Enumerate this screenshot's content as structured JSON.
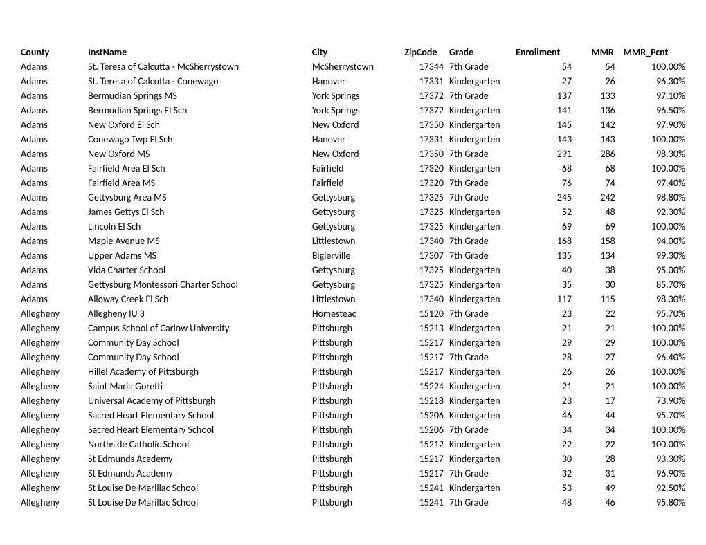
{
  "table": {
    "columns": [
      "County",
      "InstName",
      "City",
      "ZipCode",
      "Grade",
      "Enrollment",
      "MMR",
      "MMR_Pcnt"
    ],
    "rows": [
      [
        "Adams",
        "St. Teresa of Calcutta - McSherrystown",
        "McSherrystown",
        "17344",
        "7th Grade",
        "54",
        "54",
        "100.00%"
      ],
      [
        "Adams",
        "St. Teresa of Calcutta - Conewago",
        "Hanover",
        "17331",
        "Kindergarten",
        "27",
        "26",
        "96.30%"
      ],
      [
        "Adams",
        "Bermudian Springs MS",
        "York Springs",
        "17372",
        "7th Grade",
        "137",
        "133",
        "97.10%"
      ],
      [
        "Adams",
        "Bermudian Springs El Sch",
        "York Springs",
        "17372",
        "Kindergarten",
        "141",
        "136",
        "96.50%"
      ],
      [
        "Adams",
        "New Oxford El Sch",
        "New Oxford",
        "17350",
        "Kindergarten",
        "145",
        "142",
        "97.90%"
      ],
      [
        "Adams",
        "Conewago Twp El Sch",
        "Hanover",
        "17331",
        "Kindergarten",
        "143",
        "143",
        "100.00%"
      ],
      [
        "Adams",
        "New Oxford MS",
        "New Oxford",
        "17350",
        "7th Grade",
        "291",
        "286",
        "98.30%"
      ],
      [
        "Adams",
        "Fairfield Area El Sch",
        "Fairfield",
        "17320",
        "Kindergarten",
        "68",
        "68",
        "100.00%"
      ],
      [
        "Adams",
        "Fairfield Area MS",
        "Fairfield",
        "17320",
        "7th Grade",
        "76",
        "74",
        "97.40%"
      ],
      [
        "Adams",
        "Gettysburg Area MS",
        "Gettysburg",
        "17325",
        "7th Grade",
        "245",
        "242",
        "98.80%"
      ],
      [
        "Adams",
        "James Gettys El Sch",
        "Gettysburg",
        "17325",
        "Kindergarten",
        "52",
        "48",
        "92.30%"
      ],
      [
        "Adams",
        "Lincoln El Sch",
        "Gettysburg",
        "17325",
        "Kindergarten",
        "69",
        "69",
        "100.00%"
      ],
      [
        "Adams",
        "Maple Avenue MS",
        "Littlestown",
        "17340",
        "7th Grade",
        "168",
        "158",
        "94.00%"
      ],
      [
        "Adams",
        "Upper Adams MS",
        "Biglerville",
        "17307",
        "7th Grade",
        "135",
        "134",
        "99.30%"
      ],
      [
        "Adams",
        "Vida Charter School",
        "Gettysburg",
        "17325",
        "Kindergarten",
        "40",
        "38",
        "95.00%"
      ],
      [
        "Adams",
        "Gettysburg Montessori Charter School",
        "Gettysburg",
        "17325",
        "Kindergarten",
        "35",
        "30",
        "85.70%"
      ],
      [
        "Adams",
        "Alloway Creek El Sch",
        "Littlestown",
        "17340",
        "Kindergarten",
        "117",
        "115",
        "98.30%"
      ],
      [
        "Allegheny",
        "Allegheny IU 3",
        "Homestead",
        "15120",
        "7th Grade",
        "23",
        "22",
        "95.70%"
      ],
      [
        "Allegheny",
        "Campus School of Carlow University",
        "Pittsburgh",
        "15213",
        "Kindergarten",
        "21",
        "21",
        "100.00%"
      ],
      [
        "Allegheny",
        "Community Day School",
        "Pittsburgh",
        "15217",
        "Kindergarten",
        "29",
        "29",
        "100.00%"
      ],
      [
        "Allegheny",
        "Community Day School",
        "Pittsburgh",
        "15217",
        "7th Grade",
        "28",
        "27",
        "96.40%"
      ],
      [
        "Allegheny",
        "Hillel Academy of Pittsburgh",
        "Pittsburgh",
        "15217",
        "Kindergarten",
        "26",
        "26",
        "100.00%"
      ],
      [
        "Allegheny",
        "Saint Maria Goretti",
        "Pittsburgh",
        "15224",
        "Kindergarten",
        "21",
        "21",
        "100.00%"
      ],
      [
        "Allegheny",
        "Universal Academy of Pittsburgh",
        "Pittsburgh",
        "15218",
        "Kindergarten",
        "23",
        "17",
        "73.90%"
      ],
      [
        "Allegheny",
        "Sacred Heart Elementary School",
        "Pittsburgh",
        "15206",
        "Kindergarten",
        "46",
        "44",
        "95.70%"
      ],
      [
        "Allegheny",
        "Sacred Heart Elementary School",
        "Pittsburgh",
        "15206",
        "7th Grade",
        "34",
        "34",
        "100.00%"
      ],
      [
        "Allegheny",
        "Northside Catholic School",
        "Pittsburgh",
        "15212",
        "Kindergarten",
        "22",
        "22",
        "100.00%"
      ],
      [
        "Allegheny",
        "St Edmunds Academy",
        "Pittsburgh",
        "15217",
        "Kindergarten",
        "30",
        "28",
        "93.30%"
      ],
      [
        "Allegheny",
        "St Edmunds Academy",
        "Pittsburgh",
        "15217",
        "7th Grade",
        "32",
        "31",
        "96.90%"
      ],
      [
        "Allegheny",
        "St Louise De Marillac School",
        "Pittsburgh",
        "15241",
        "Kindergarten",
        "53",
        "49",
        "92.50%"
      ],
      [
        "Allegheny",
        "St Louise De Marillac School",
        "Pittsburgh",
        "15241",
        "7th Grade",
        "48",
        "46",
        "95.80%"
      ]
    ]
  }
}
